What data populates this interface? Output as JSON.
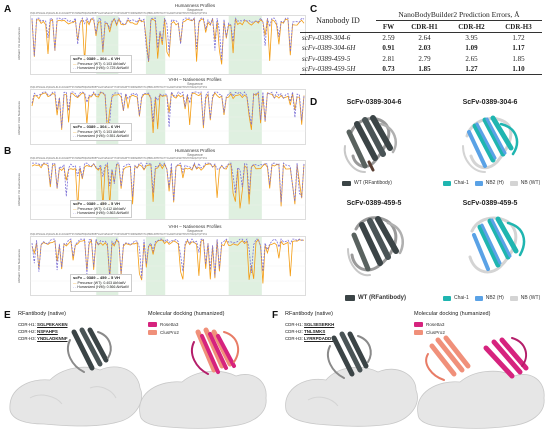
{
  "panels": {
    "A": "A",
    "B": "B",
    "C": "C",
    "D": "D",
    "E": "E",
    "F": "F"
  },
  "profiles": {
    "humanness_title": "Humanness Profiles",
    "vhh_title": "VHH – Nativeness Profiles",
    "sequence_label": "Sequence",
    "ylabel_humanness": "AbNatiV VH Humanness",
    "ylabel_vhh": "AbNatiV VHH Nativeness",
    "seq_ticks": "QVQLVESGGGLVQAGGSLRLSCAASGRTFSSYAMGWFRQAPGKEREFVAAISWSGGSTYYADSVKGRFTISRDNAKNTVYLQMNSLKPEDTAVYYCAAGRYGSSWYPDSYDYWGQGTQVTVSS",
    "A_top": {
      "name": "scFv – 0389 – 304 – 6 VH",
      "l1": "Precursor (WT): 0.103 AbNatiV",
      "l2": "Humanized (H/M): 0.725 AbNatiV"
    },
    "A_bot": {
      "name": "scFv – 0389 – 304 – 6 VH",
      "l1": "Precursor (WT): 0.103 AbNatiV",
      "l2": "Humanized (H/M): 0.551 AbNatiV"
    },
    "B_top": {
      "name": "scFv – 0389 – 459 – 5 VH",
      "l1": "Precursor (WT): 0.412 AbNatiV",
      "l2": "Humanized (H/M): 0.863 AbNatiV"
    },
    "B_bot": {
      "name": "scFv – 0389 – 459 – 5 VH",
      "l1": "Precursor (WT): 0.403 AbNatiV",
      "l2": "Humanized (H/M): 0.566 AbNatiV"
    }
  },
  "table": {
    "col_id": "Nanobody ID",
    "col_group": "NanoBodyBuilder2 Prediction Errors, Å",
    "cols": [
      "FW",
      "CDR-H1",
      "CDR-H2",
      "CDR-H3"
    ],
    "rows": [
      {
        "id": "scFv-0389-304-6",
        "vals": [
          "2.59",
          "2.64",
          "3.95",
          "1.72"
        ],
        "bold": false
      },
      {
        "id": "scFv-0389-304-6H",
        "vals": [
          "0.91",
          "2.03",
          "1.09",
          "1.17"
        ],
        "bold": true
      },
      {
        "id": "scFv-0389-459-5",
        "vals": [
          "2.81",
          "2.79",
          "2.65",
          "1.85"
        ],
        "bold": false
      },
      {
        "id": "scFv-0389-459-5H",
        "vals": [
          "0.73",
          "1.85",
          "1.27",
          "1.10"
        ],
        "bold": true
      }
    ]
  },
  "structures": {
    "t1": "ScFv-0389-304-6",
    "t2": "ScFv-0389-304-6",
    "t3": "ScFv-0389-459-5",
    "t4": "ScFv-0389-459-5",
    "leg_wt_rf_small": "WT (RFantibody)",
    "leg_wt_rf_big": "WT (RFantibody)",
    "leg_chai": "Chai-1",
    "leg_nb2": "NB2 (H)",
    "leg_nbwt": "NB (WT)",
    "leg_chai_b": "Chai-1",
    "leg_nb2_b": "NB2 (H)",
    "leg_nbwt_b": "NB (WT)"
  },
  "panelE": {
    "native_title": "RFantibody (native)",
    "dock_title": "Molecular docking (humanized)",
    "h1_label": "CDR-H1:",
    "h1_seq": "SGLPEKAKEN",
    "h2_label": "CDR-H2:",
    "h2_seq": "NSFAHPS",
    "h3_label": "CDR-H3:",
    "h3_seq": "YNDLADKNNF",
    "leg1": "Rosetta3",
    "leg2": "ClusPro2"
  },
  "panelF": {
    "native_title": "RFantibody (native)",
    "dock_title": "Molecular docking (humanized)",
    "h1_label": "CDR-H1:",
    "h1_seq": "SGLSESERKH",
    "h2_label": "CDR-H2:",
    "h2_seq": "TNLSMKS",
    "h3_label": "CDR-H3:",
    "h3_seq": "LYRRPDADDY",
    "leg1": "Rosetta3",
    "leg2": "ClusPro2"
  },
  "colors": {
    "precursor": "#f39c12",
    "humanized": "#7b6fd6",
    "shade": "#dff0e0",
    "rf_dark": "#3b4446",
    "chai": "#1fb5b0",
    "nb2": "#5aa2e6",
    "nbwt": "#d4d4d4",
    "rosetta": "#d6237e",
    "cluspro": "#f0907a",
    "surface": "#e6e6e6"
  }
}
